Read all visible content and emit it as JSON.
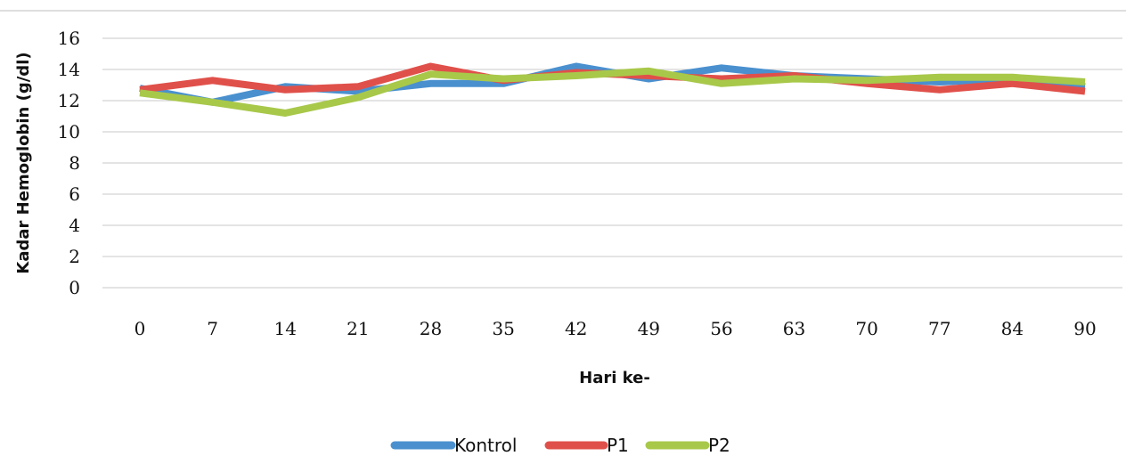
{
  "chart_data": {
    "type": "line",
    "categories": [
      "0",
      "7",
      "14",
      "21",
      "28",
      "35",
      "42",
      "49",
      "56",
      "63",
      "70",
      "77",
      "84",
      "90"
    ],
    "series": [
      {
        "name": "Kontrol",
        "color": "#4a90cf",
        "values": [
          12.8,
          11.9,
          12.9,
          12.6,
          13.1,
          13.1,
          14.2,
          13.4,
          14.1,
          13.6,
          13.4,
          13.2,
          13.4,
          12.9
        ]
      },
      {
        "name": "P1",
        "color": "#e0504a",
        "values": [
          12.7,
          13.3,
          12.7,
          12.9,
          14.2,
          13.3,
          13.8,
          13.6,
          13.4,
          13.6,
          13.1,
          12.7,
          13.1,
          12.6
        ]
      },
      {
        "name": "P2",
        "color": "#a8c84a",
        "values": [
          12.5,
          11.9,
          11.2,
          12.2,
          13.7,
          13.4,
          13.6,
          13.9,
          13.1,
          13.4,
          13.3,
          13.5,
          13.5,
          13.2
        ]
      }
    ],
    "yticks": [
      "0",
      "2",
      "4",
      "6",
      "8",
      "10",
      "12",
      "14",
      "16"
    ],
    "ylim": [
      0,
      16
    ],
    "xlabel": "Hari ke-",
    "ylabel": "Kadar Hemoglobin (g/dl)",
    "grid": true,
    "legend": "bottom"
  }
}
